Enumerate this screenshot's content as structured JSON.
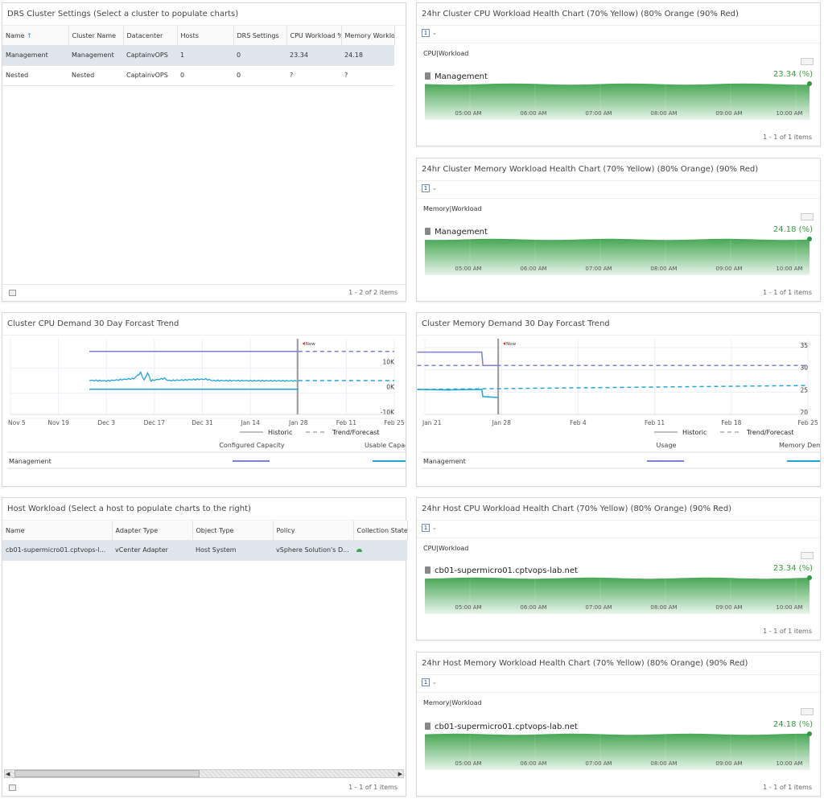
{
  "drs": {
    "title": "DRS Cluster Settings (Select a cluster to populate charts)",
    "columns": [
      "Name",
      "Cluster Name",
      "Datacenter",
      "Hosts",
      "DRS Settings",
      "CPU Workload %",
      "Memory Workload"
    ],
    "rows": [
      [
        "Management",
        "Management",
        "CaptainvOPS",
        "1",
        "0",
        "23.34",
        "24.18"
      ],
      [
        "Nested",
        "Nested",
        "CaptainvOPS",
        "0",
        "0",
        "?",
        "?"
      ]
    ],
    "footer": "1 - 2 of 2 items"
  },
  "health": [
    {
      "title": "24hr Cluster CPU Workload Health Chart (70% Yellow) (80% Orange (90% Red)",
      "metric": "CPU|Workload",
      "resource": "Management",
      "resource_icon": "cluster-icon",
      "value": "23.34 (%)",
      "footer": "1 - 1 of 1 items"
    },
    {
      "title": "24hr Cluster Memory Workload Health Chart (70% Yellow) (80% Orange) (90% Red)",
      "metric": "Memory|Workload",
      "resource": "Management",
      "resource_icon": "cluster-icon",
      "value": "24.18 (%)",
      "footer": "1 - 1 of 1 items"
    },
    {
      "title": "24hr Host CPU Workload Health Chart (70% Yellow) (80% Orange) (90% Red)",
      "metric": "CPU|Workload",
      "resource": "cb01-supermicro01.cptvops-lab.net",
      "resource_icon": "host-icon",
      "value": "23.34 (%)",
      "footer": "1 - 1 of 1 items"
    },
    {
      "title": "24hr Host Memory Workload Health Chart (70% Yellow) (80% Orange) (90% Red)",
      "metric": "Memory|Workload",
      "resource": "cb01-supermicro01.cptvops-lab.net",
      "resource_icon": "host-icon",
      "value": "24.18 (%)",
      "footer": "1 - 1 of 1 items"
    }
  ],
  "health_time_labels": [
    "05:00 AM",
    "06:00 AM",
    "07:00 AM",
    "08:00 AM",
    "09:00 AM",
    "10:00 AM"
  ],
  "health_color": "#3fa34d",
  "forecast": [
    {
      "title": "Cluster CPU Demand 30 Day Forcast Trend",
      "type": "line",
      "now_label": "Now",
      "x_ticks": [
        "Nov 5",
        "Nov 19",
        "Dec 3",
        "Dec 17",
        "Dec 31",
        "Jan 14",
        "Jan 28",
        "Feb 11",
        "Feb 25"
      ],
      "y_ticks": [
        "10K",
        "0K",
        "-10K"
      ],
      "ylim": [
        -10000,
        20000
      ],
      "legend_style": [
        "Historic",
        "Trend/Forecast"
      ],
      "series_legend": [
        "Configured Capacity",
        "Usable Capacity"
      ],
      "row_label": "Management",
      "series": [
        {
          "name": "Configured Capacity",
          "color": "#7b7fd6",
          "historic": [
            [
              "Nov 28",
              15000
            ],
            [
              "Jan 28",
              15000
            ]
          ],
          "forecast": [
            [
              "Jan 28",
              15000
            ],
            [
              "Feb 25",
              15000
            ]
          ]
        },
        {
          "color": "#1ea6d8",
          "historic": [
            [
              "Nov 28",
              3500
            ],
            [
              "Dec 3",
              3300
            ],
            [
              "Dec 11",
              4200
            ],
            [
              "Dec 13",
              6500
            ],
            [
              "Dec 14",
              3500
            ],
            [
              "Dec 15",
              6500
            ],
            [
              "Dec 16",
              3400
            ],
            [
              "Dec 20",
              4300
            ],
            [
              "Dec 21",
              3400
            ],
            [
              "Jan 1",
              4000
            ],
            [
              "Jan 3",
              3400
            ],
            [
              "Jan 28",
              3300
            ]
          ],
          "forecast": [
            [
              "Jan 28",
              3400
            ],
            [
              "Feb 25",
              3400
            ]
          ]
        },
        {
          "name": "Usable Capacity",
          "color": "#1ea6d8",
          "historic": [
            [
              "Nov 28",
              0
            ],
            [
              "Jan 28",
              0
            ]
          ],
          "forecast": []
        }
      ]
    },
    {
      "title": "Cluster Memory Demand 30 Day Forcast Trend",
      "type": "line",
      "now_label": "Now",
      "x_ticks": [
        "Jan 21",
        "Jan 28",
        "Feb 4",
        "Feb 11",
        "Feb 18",
        "Feb 25"
      ],
      "y_ticks": [
        "35",
        "30",
        "25",
        "20"
      ],
      "ylim": [
        20,
        37
      ],
      "legend_style": [
        "Historic",
        "Trend/Forecast"
      ],
      "series_legend": [
        "Usage",
        "Memory Demand"
      ],
      "row_label": "Management",
      "series": [
        {
          "name": "Usage",
          "color": "#7b7fd6",
          "historic": [
            [
              "Jan 20.3",
              34
            ],
            [
              "Jan 26.2",
              34
            ],
            [
              "Jan 26.3",
              31
            ],
            [
              "Jan 27.7",
              31
            ]
          ],
          "forecast": [
            [
              "Jan 20.3",
              31
            ],
            [
              "Feb 25",
              31
            ]
          ]
        },
        {
          "name": "Memory Demand",
          "color": "#1ea6d8",
          "historic": [
            [
              "Jan 20.3",
              25.6
            ],
            [
              "Jan 23",
              25.5
            ],
            [
              "Jan 26.2",
              25.6
            ],
            [
              "Jan 26.3",
              24
            ],
            [
              "Jan 27.7",
              23.8
            ]
          ],
          "forecast": [
            [
              "Jan 20.3",
              25.6
            ],
            [
              "Feb 25",
              26.5
            ]
          ]
        }
      ]
    }
  ],
  "host": {
    "title": "Host Workload (Select a host to populate charts to the right)",
    "columns": [
      "Name",
      "Adapter Type",
      "Object Type",
      "Policy",
      "Collection State"
    ],
    "rows": [
      [
        "cb01-supermicro01.cptvops-l...",
        "vCenter Adapter",
        "Host System",
        "vSphere Solution's D...",
        ""
      ]
    ],
    "collection_state_color": "#3fa34d",
    "footer": "1 - 1 of 1 items"
  }
}
